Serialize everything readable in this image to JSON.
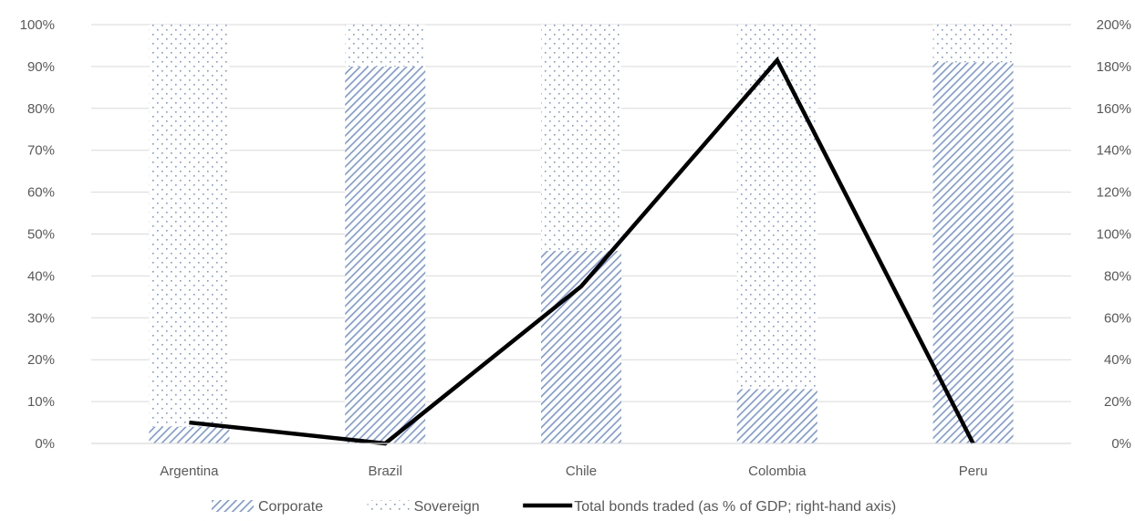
{
  "chart_data": {
    "type": "bar",
    "subtype": "stacked-bar-with-line",
    "categories": [
      "Argentina",
      "Brazil",
      "Chile",
      "Colombia",
      "Peru"
    ],
    "series": [
      {
        "name": "Corporate",
        "kind": "bar",
        "axis": "left",
        "pattern": "diagonal-hatch",
        "color": "#7a99d6",
        "values": [
          4,
          90,
          46,
          13,
          91
        ]
      },
      {
        "name": "Sovereign",
        "kind": "bar",
        "axis": "left",
        "pattern": "dots",
        "color": "#7a99d6",
        "values": [
          96,
          10,
          54,
          87,
          9
        ]
      },
      {
        "name": "Total bonds traded (as % of GDP; right-hand axis)",
        "kind": "line",
        "axis": "right",
        "color": "#000000",
        "values": [
          10,
          0,
          75,
          183,
          0
        ]
      }
    ],
    "y_left": {
      "min": 0,
      "max": 100,
      "step": 10,
      "tick_labels": [
        "0%",
        "10%",
        "20%",
        "30%",
        "40%",
        "50%",
        "60%",
        "70%",
        "80%",
        "90%",
        "100%"
      ]
    },
    "y_right": {
      "min": 0,
      "max": 200,
      "step": 20,
      "tick_labels": [
        "0%",
        "20%",
        "40%",
        "60%",
        "80%",
        "100%",
        "120%",
        "140%",
        "160%",
        "180%",
        "200%"
      ]
    },
    "grid": true,
    "legend_position": "bottom",
    "gridline_color": "#d9d9d9"
  }
}
